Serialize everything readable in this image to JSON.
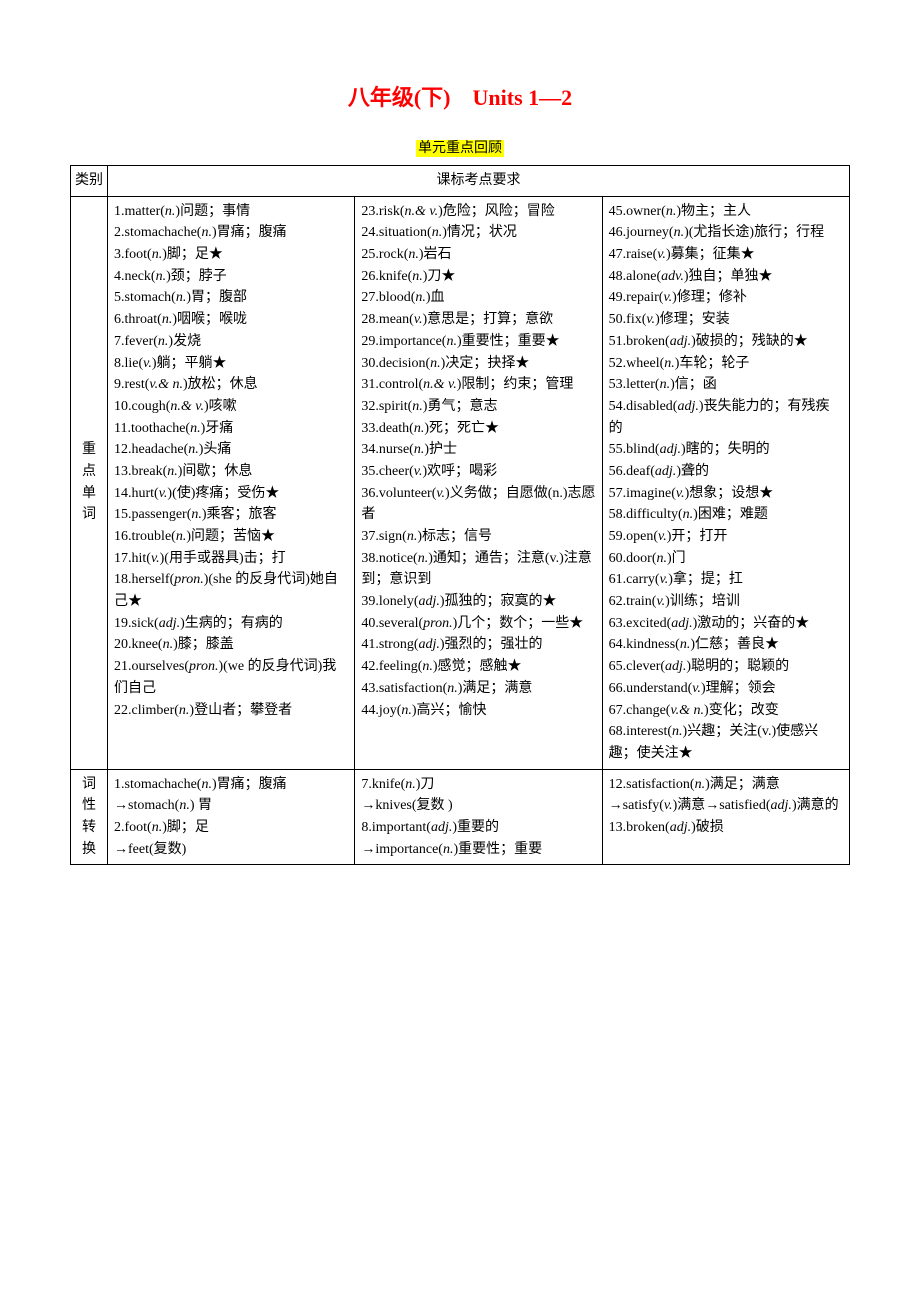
{
  "title": {
    "text": "八年级(下)　Units 1—2",
    "color": "#ff0000",
    "fontsize_pt": 16
  },
  "subtitle": {
    "text": "单元重点回顾",
    "highlight_bg": "#ffff00",
    "color": "#000000"
  },
  "table": {
    "border_color": "#000000",
    "background": "#ffffff",
    "col_widths_pct": [
      5,
      31.5,
      31.5,
      32
    ],
    "header": {
      "cat_label": "类别",
      "req_label": "课标考点要求"
    },
    "rows": [
      {
        "cat": "重点单词",
        "cols": [
          [
            {
              "n": "1",
              "word": "matter",
              "pos": "n.",
              "def": "问题；事情"
            },
            {
              "n": "2",
              "word": "stomachache",
              "pos": "n.",
              "def": "胃痛；腹痛"
            },
            {
              "n": "3",
              "word": "foot",
              "pos": "n.",
              "def": "脚；足",
              "star": true
            },
            {
              "n": "4",
              "word": "neck",
              "pos": "n.",
              "def": "颈；脖子"
            },
            {
              "n": "5",
              "word": "stomach",
              "pos": "n.",
              "def": "胃；腹部"
            },
            {
              "n": "6",
              "word": "throat",
              "pos": "n.",
              "def": "咽喉；喉咙"
            },
            {
              "n": "7",
              "word": "fever",
              "pos": "n.",
              "def": "发烧"
            },
            {
              "n": "8",
              "word": "lie",
              "pos": "v.",
              "def": "躺；平躺",
              "star": true
            },
            {
              "n": "9",
              "word": "rest",
              "pos": "v.& n.",
              "def": "放松；休息"
            },
            {
              "n": "10",
              "word": "cough",
              "pos": "n.& v.",
              "def": "咳嗽"
            },
            {
              "n": "11",
              "word": "toothache",
              "pos": "n.",
              "def": "牙痛"
            },
            {
              "n": "12",
              "word": "headache",
              "pos": "n.",
              "def": "头痛"
            },
            {
              "n": "13",
              "word": "break",
              "pos": "n.",
              "def": "间歇；休息"
            },
            {
              "n": "14",
              "word": "hurt",
              "pos": "v.",
              "def": "(使)疼痛；受伤",
              "star": true
            },
            {
              "n": "15",
              "word": "passenger",
              "pos": "n.",
              "def": "乘客；旅客"
            },
            {
              "n": "16",
              "word": "trouble",
              "pos": "n.",
              "def": "问题；苦恼",
              "star": true
            },
            {
              "n": "17",
              "word": "hit",
              "pos": "v.",
              "def": "(用手或器具)击；打"
            },
            {
              "n": "18",
              "word": "herself",
              "pos": "pron.",
              "def": "(she 的反身代词)她自己",
              "star": true
            },
            {
              "n": "19",
              "word": "sick",
              "pos": "adj.",
              "def": "生病的；有病的"
            },
            {
              "n": "20",
              "word": "knee",
              "pos": "n.",
              "def": "膝；膝盖"
            },
            {
              "n": "21",
              "word": "ourselves",
              "pos": "pron.",
              "def": "(we 的反身代词)我们自己"
            },
            {
              "n": "22",
              "word": "climber",
              "pos": "n.",
              "def": "登山者；攀登者"
            }
          ],
          [
            {
              "n": "23",
              "word": "risk",
              "pos": "n.& v.",
              "def": "危险；风险；冒险"
            },
            {
              "n": "24",
              "word": "situation",
              "pos": "n.",
              "def": "情况；状况"
            },
            {
              "n": "25",
              "word": "rock",
              "pos": "n.",
              "def": "岩石"
            },
            {
              "n": "26",
              "word": "knife",
              "pos": "n.",
              "def": "刀",
              "star": true
            },
            {
              "n": "27",
              "word": "blood",
              "pos": "n.",
              "def": "血"
            },
            {
              "n": "28",
              "word": "mean",
              "pos": "v.",
              "def": "意思是；打算；意欲"
            },
            {
              "n": "29",
              "word": "importance",
              "pos": "n.",
              "def": "重要性；重要",
              "star": true
            },
            {
              "n": "30",
              "word": "decision",
              "pos": "n.",
              "def": "决定；抉择",
              "star": true
            },
            {
              "n": "31",
              "word": "control",
              "pos": "n.& v.",
              "def": "限制；约束；管理"
            },
            {
              "n": "32",
              "word": "spirit",
              "pos": "n.",
              "def": "勇气；意志"
            },
            {
              "n": "33",
              "word": "death",
              "pos": "n.",
              "def": "死；死亡",
              "star": true
            },
            {
              "n": "34",
              "word": "nurse",
              "pos": "n.",
              "def": "护士"
            },
            {
              "n": "35",
              "word": "cheer",
              "pos": "v.",
              "def": "欢呼；喝彩"
            },
            {
              "n": "36",
              "word": "volunteer",
              "pos": "v.",
              "def": "义务做；自愿做(n.)志愿者"
            },
            {
              "n": "37",
              "word": "sign",
              "pos": "n.",
              "def": "标志；信号"
            },
            {
              "n": "38",
              "word": "notice",
              "pos": "n.",
              "def": "通知；通告；注意(v.)注意到；意识到"
            },
            {
              "n": "39",
              "word": "lonely",
              "pos": "adj.",
              "def": "孤独的；寂寞的",
              "star": true
            },
            {
              "n": "40",
              "word": "several",
              "pos": "pron.",
              "def": "几个；数个；一些",
              "star": true
            },
            {
              "n": "41",
              "word": "strong",
              "pos": "adj.",
              "def": "强烈的；强壮的"
            },
            {
              "n": "42",
              "word": "feeling",
              "pos": "n.",
              "def": "感觉；感触",
              "star": true
            },
            {
              "n": "43",
              "word": "satisfaction",
              "pos": "n.",
              "def": "满足；满意"
            },
            {
              "n": "44",
              "word": "joy",
              "pos": "n.",
              "def": "高兴；愉快"
            }
          ],
          [
            {
              "n": "45",
              "word": "owner",
              "pos": "n.",
              "def": "物主；主人"
            },
            {
              "n": "46",
              "word": "journey",
              "pos": "n.",
              "def": "(尤指长途)旅行；行程"
            },
            {
              "n": "47",
              "word": "raise",
              "pos": "v.",
              "def": "募集；征集",
              "star": true
            },
            {
              "n": "48",
              "word": "alone",
              "pos": "adv.",
              "def": "独自；单独",
              "star": true
            },
            {
              "n": "49",
              "word": "repair",
              "pos": "v.",
              "def": "修理；修补"
            },
            {
              "n": "50",
              "word": "fix",
              "pos": "v.",
              "def": "修理；安装"
            },
            {
              "n": "51",
              "word": "broken",
              "pos": "adj.",
              "def": "破损的；残缺的",
              "star": true
            },
            {
              "n": "52",
              "word": "wheel",
              "pos": "n.",
              "def": "车轮；轮子"
            },
            {
              "n": "53",
              "word": "letter",
              "pos": "n.",
              "def": "信；函"
            },
            {
              "n": "54",
              "word": "disabled",
              "pos": "adj.",
              "def": "丧失能力的；有残疾的"
            },
            {
              "n": "55",
              "word": "blind",
              "pos": "adj.",
              "def": "瞎的；失明的"
            },
            {
              "n": "56",
              "word": "deaf",
              "pos": "adj.",
              "def": "聋的"
            },
            {
              "n": "57",
              "word": "imagine",
              "pos": "v.",
              "def": "想象；设想",
              "star": true
            },
            {
              "n": "58",
              "word": "difficulty",
              "pos": "n.",
              "def": "困难；难题"
            },
            {
              "n": "59",
              "word": "open",
              "pos": "v.",
              "def": "开；打开"
            },
            {
              "n": "60",
              "word": "door",
              "pos": "n.",
              "def": "门"
            },
            {
              "n": "61",
              "word": "carry",
              "pos": "v.",
              "def": "拿；提；扛"
            },
            {
              "n": "62",
              "word": "train",
              "pos": "v.",
              "def": "训练；培训"
            },
            {
              "n": "63",
              "word": "excited",
              "pos": "adj.",
              "def": "激动的；兴奋的",
              "star": true
            },
            {
              "n": "64",
              "word": "kindness",
              "pos": "n.",
              "def": "仁慈；善良",
              "star": true
            },
            {
              "n": "65",
              "word": "clever",
              "pos": "adj.",
              "def": "聪明的；聪颖的"
            },
            {
              "n": "66",
              "word": "understand",
              "pos": "v.",
              "def": "理解；领会"
            },
            {
              "n": "67",
              "word": "change",
              "pos": "v.& n.",
              "def": "变化；改变"
            },
            {
              "n": "68",
              "word": "interest",
              "pos": "n.",
              "def": "兴趣；关注(v.)使感兴趣；使关注",
              "star": true
            }
          ]
        ]
      },
      {
        "cat": "词性转换",
        "cols": [
          [
            {
              "raw": "1.stomachache(<i>n.</i>)胃痛；腹痛<br>→stomach(<i>n.</i>) 胃"
            },
            {
              "raw": "2.foot(<i>n.</i>)脚；足<br>→feet(复数)"
            }
          ],
          [
            {
              "raw": "7.knife(<i>n.</i>)刀<br>→knives(复数 )"
            },
            {
              "raw": "8.important(<i>adj.</i>)重要的<br>→importance(<i>n.</i>)重要性；重要"
            }
          ],
          [
            {
              "raw": "12.satisfaction(<i>n.</i>)满足；满意→satisfy(<i>v.</i>)满意→satisfied(<i>adj.</i>)满意的"
            },
            {
              "raw": "13.broken(<i>adj.</i>)破损"
            }
          ]
        ]
      }
    ]
  }
}
